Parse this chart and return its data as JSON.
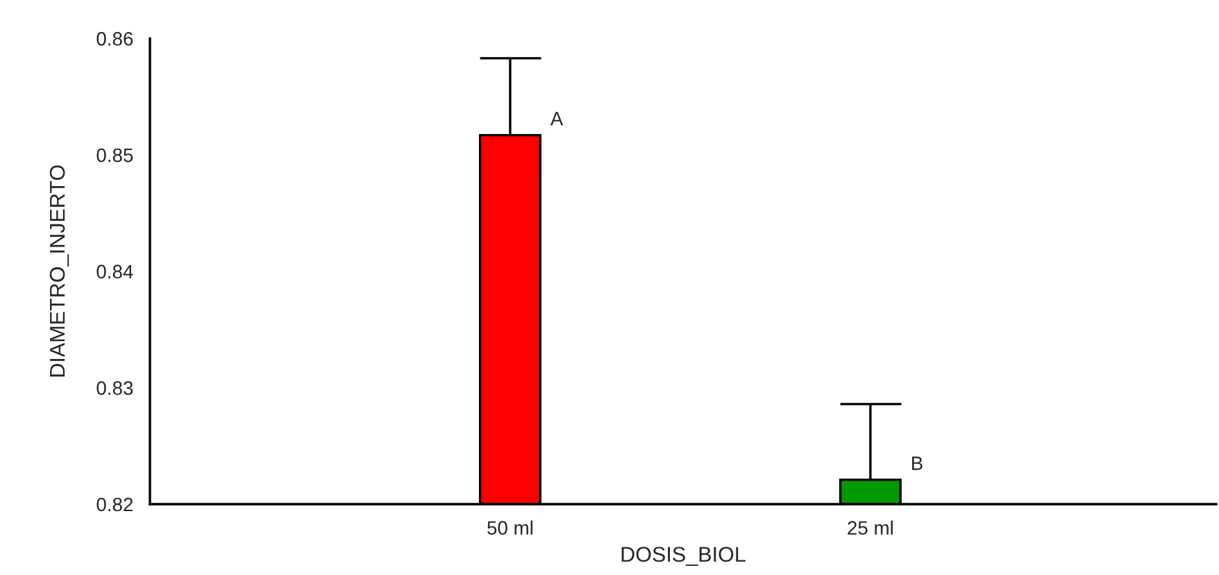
{
  "chart_data": {
    "type": "bar",
    "xlabel": "DOSIS_BIOL",
    "ylabel": "DIAMETRO_INJERTO",
    "categories": [
      "50 ml",
      "25 ml"
    ],
    "values": [
      0.8517,
      0.8221
    ],
    "colors": [
      "#ff0000",
      "#009900"
    ],
    "errors": [
      [
        0.8517,
        0.8583
      ],
      [
        0.8221,
        0.8286
      ]
    ],
    "ylim": [
      0.82,
      0.86
    ],
    "yticks": [
      0.82,
      0.83,
      0.84,
      0.85,
      0.86
    ],
    "grid": false,
    "annotations": [
      {
        "text": "A",
        "x": "50 ml",
        "y": 0.8517
      },
      {
        "text": "B",
        "x": "25 ml",
        "y": 0.8221
      }
    ]
  }
}
